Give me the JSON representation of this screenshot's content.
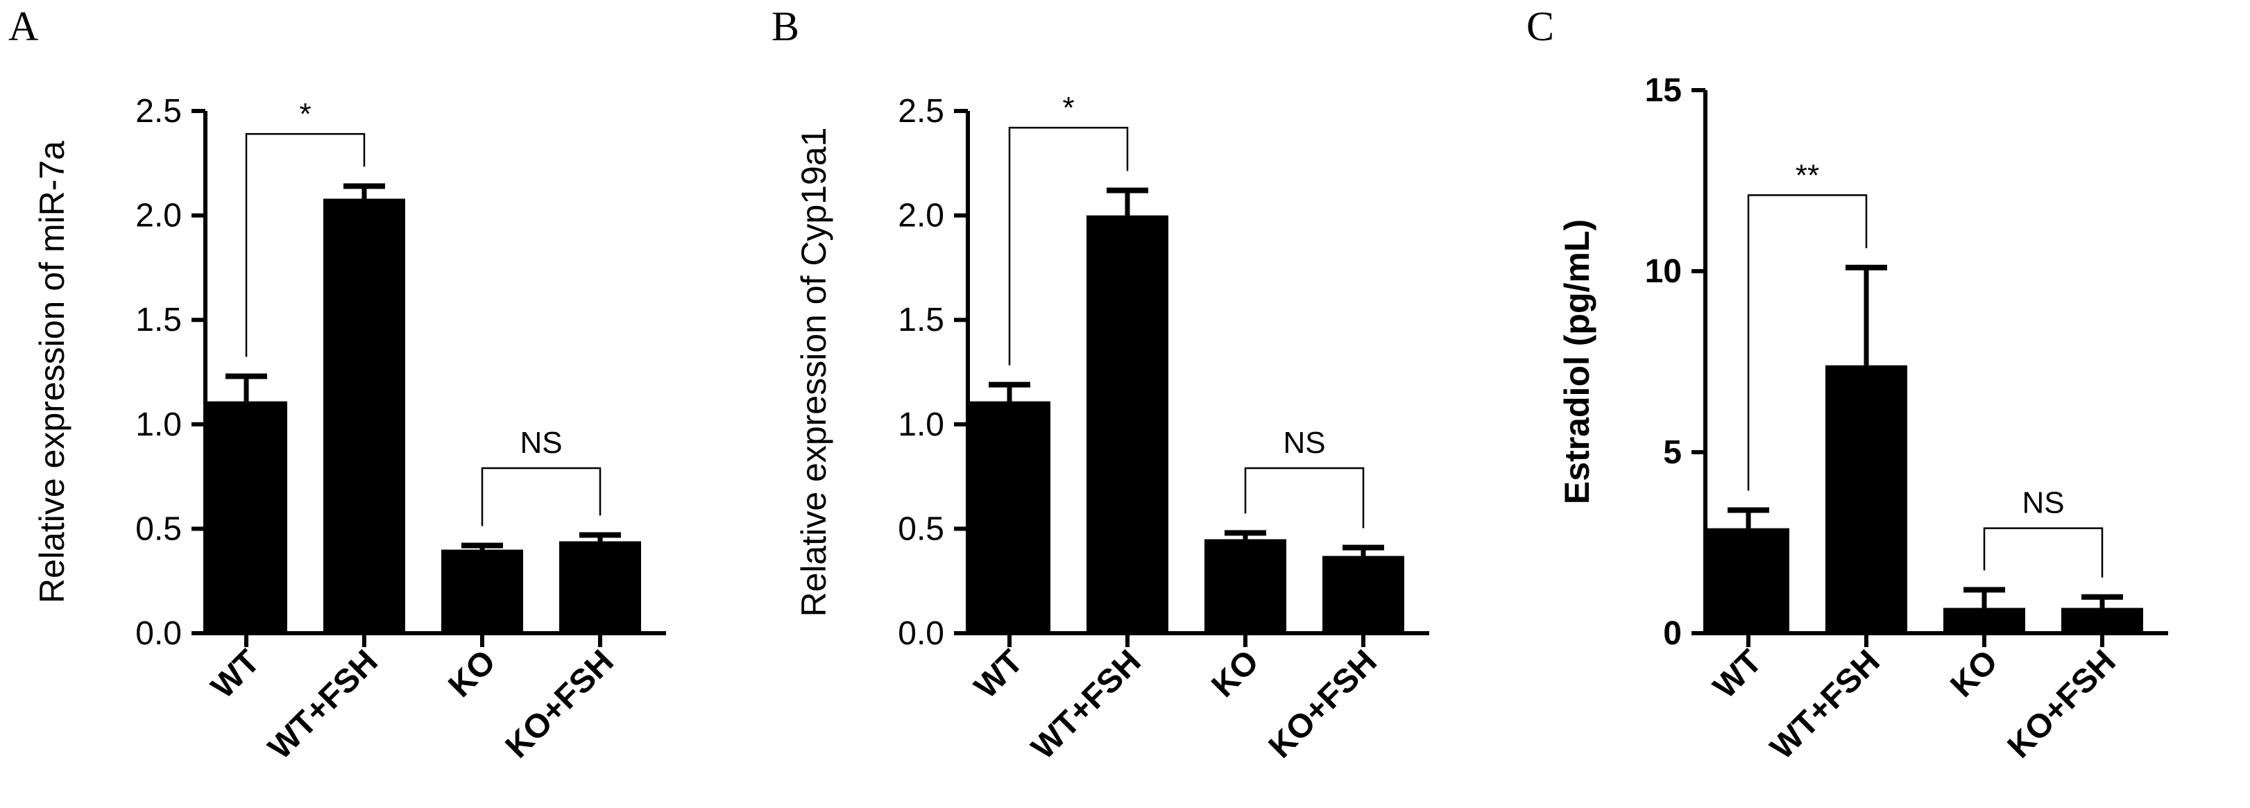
{
  "figure": {
    "background": "#ffffff",
    "bar_color": "#000000"
  },
  "chart_data": [
    {
      "panel": "A",
      "type": "bar",
      "title": "",
      "categories": [
        "WT",
        "WT+FSH",
        "KO",
        "KO+FSH"
      ],
      "values": [
        1.11,
        2.08,
        0.4,
        0.44
      ],
      "errors": [
        0.12,
        0.06,
        0.02,
        0.03
      ],
      "xlabel": "",
      "ylabel": "Relative expression of miR-7a",
      "ylim": [
        0,
        2.5
      ],
      "yticks": [
        "0.0",
        "0.5",
        "1.0",
        "1.5",
        "2.0",
        "2.5"
      ],
      "grid": false,
      "legend": "none",
      "annotations": [
        {
          "from": 0,
          "to": 1,
          "label": "*",
          "y": 2.39
        },
        {
          "from": 2,
          "to": 3,
          "label": "NS",
          "y": 0.79
        }
      ]
    },
    {
      "panel": "B",
      "type": "bar",
      "title": "",
      "categories": [
        "WT",
        "WT+FSH",
        "KO",
        "KO+FSH"
      ],
      "values": [
        1.11,
        2.0,
        0.45,
        0.37
      ],
      "errors": [
        0.08,
        0.12,
        0.03,
        0.04
      ],
      "xlabel": "",
      "ylabel": "Relative expression of Cyp19a1",
      "ylim": [
        0,
        2.5
      ],
      "yticks": [
        "0.0",
        "0.5",
        "1.0",
        "1.5",
        "2.0",
        "2.5"
      ],
      "grid": false,
      "legend": "none",
      "annotations": [
        {
          "from": 0,
          "to": 1,
          "label": "*",
          "y": 2.42
        },
        {
          "from": 2,
          "to": 3,
          "label": "NS",
          "y": 0.79
        }
      ]
    },
    {
      "panel": "C",
      "type": "bar",
      "title": "",
      "categories": [
        "WT",
        "WT+FSH",
        "KO",
        "KO+FSH"
      ],
      "values": [
        2.9,
        7.4,
        0.7,
        0.7
      ],
      "errors": [
        0.5,
        2.7,
        0.5,
        0.3
      ],
      "xlabel": "",
      "ylabel": "Estradiol (pg/mL)",
      "ylim": [
        0,
        15
      ],
      "yticks": [
        "0",
        "5",
        "10",
        "15"
      ],
      "grid": false,
      "legend": "none",
      "annotations": [
        {
          "from": 0,
          "to": 1,
          "label": "**",
          "y": 12.1
        },
        {
          "from": 2,
          "to": 3,
          "label": "NS",
          "y": 2.9
        }
      ]
    }
  ]
}
